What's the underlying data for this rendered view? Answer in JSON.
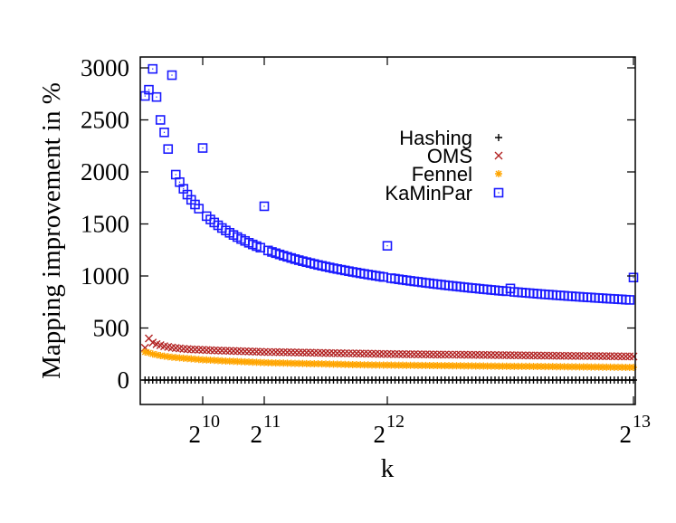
{
  "chart_data": {
    "type": "scatter",
    "title": "",
    "xlabel": "k",
    "ylabel": "Mapping improvement in %",
    "xlim": [
      0,
      8192
    ],
    "ylim": [
      -235,
      3100
    ],
    "x_scale": "linear",
    "grid": false,
    "legend_placement": "top-right (inside)",
    "y_ticks": [
      0,
      500,
      1000,
      1500,
      2000,
      2500,
      3000
    ],
    "x_ticks": [
      {
        "value": 1024,
        "base": "2",
        "exp": "10"
      },
      {
        "value": 2048,
        "base": "2",
        "exp": "11"
      },
      {
        "value": 4096,
        "base": "2",
        "exp": "12"
      },
      {
        "value": 8192,
        "base": "2",
        "exp": "13"
      }
    ],
    "x": [
      64,
      128,
      192,
      256,
      320,
      384,
      448,
      512,
      576,
      640,
      704,
      768,
      832,
      896,
      960,
      1024,
      1088,
      1152,
      1216,
      1280,
      1344,
      1408,
      1472,
      1536,
      1600,
      1664,
      1728,
      1792,
      1856,
      1920,
      1984,
      2048,
      2112,
      2176,
      2240,
      2304,
      2368,
      2432,
      2496,
      2560,
      2624,
      2688,
      2752,
      2816,
      2880,
      2944,
      3008,
      3072,
      3136,
      3200,
      3264,
      3328,
      3392,
      3456,
      3520,
      3584,
      3648,
      3712,
      3776,
      3840,
      3904,
      3968,
      4032,
      4096,
      4160,
      4224,
      4288,
      4352,
      4416,
      4480,
      4544,
      4608,
      4672,
      4736,
      4800,
      4864,
      4928,
      4992,
      5056,
      5120,
      5184,
      5248,
      5312,
      5376,
      5440,
      5504,
      5568,
      5632,
      5696,
      5760,
      5824,
      5888,
      5952,
      6016,
      6080,
      6144,
      6208,
      6272,
      6336,
      6400,
      6464,
      6528,
      6592,
      6656,
      6720,
      6784,
      6848,
      6912,
      6976,
      7040,
      7104,
      7168,
      7232,
      7296,
      7360,
      7424,
      7488,
      7552,
      7616,
      7680,
      7744,
      7808,
      7872,
      7936,
      8000,
      8064,
      8128,
      8192
    ],
    "series": [
      {
        "name": "Hashing",
        "marker": "plus",
        "color": "#000000",
        "values": [
          0,
          0,
          0,
          0,
          0,
          0,
          0,
          0,
          0,
          0,
          0,
          0,
          0,
          0,
          0,
          0,
          0,
          0,
          0,
          0,
          0,
          0,
          0,
          0,
          0,
          0,
          0,
          0,
          0,
          0,
          0,
          0,
          0,
          0,
          0,
          0,
          0,
          0,
          0,
          0,
          0,
          0,
          0,
          0,
          0,
          0,
          0,
          0,
          0,
          0,
          0,
          0,
          0,
          0,
          0,
          0,
          0,
          0,
          0,
          0,
          0,
          0,
          0,
          0,
          0,
          0,
          0,
          0,
          0,
          0,
          0,
          0,
          0,
          0,
          0,
          0,
          0,
          0,
          0,
          0,
          0,
          0,
          0,
          0,
          0,
          0,
          0,
          0,
          0,
          0,
          0,
          0,
          0,
          0,
          0,
          0,
          0,
          0,
          0,
          0,
          0,
          0,
          0,
          0,
          0,
          0,
          0,
          0,
          0,
          0,
          0,
          0,
          0,
          0,
          0,
          0,
          0,
          0,
          0,
          0,
          0,
          0,
          0,
          0,
          0,
          0,
          0,
          0
        ]
      },
      {
        "name": "OMS",
        "marker": "cross",
        "color": "#b22222",
        "values": [
          310,
          400,
          360,
          345,
          335,
          325,
          318,
          312,
          308,
          304,
          300,
          297,
          295,
          293,
          291,
          290,
          288,
          287,
          285,
          284,
          283,
          282,
          280,
          279,
          278,
          277,
          276,
          275,
          274,
          273,
          272,
          270,
          269,
          269,
          268,
          267,
          267,
          266,
          266,
          265,
          264,
          264,
          263,
          263,
          262,
          261,
          261,
          260,
          259,
          259,
          258,
          258,
          257,
          256,
          256,
          255,
          254,
          254,
          253,
          253,
          252,
          251,
          251,
          250,
          250,
          249,
          249,
          249,
          248,
          248,
          248,
          247,
          247,
          247,
          246,
          246,
          245,
          245,
          245,
          244,
          244,
          244,
          243,
          243,
          242,
          242,
          242,
          241,
          241,
          241,
          240,
          240,
          239,
          239,
          239,
          238,
          238,
          238,
          237,
          237,
          236,
          236,
          236,
          235,
          235,
          235,
          234,
          234,
          233,
          233,
          233,
          232,
          232,
          232,
          231,
          231,
          230,
          230,
          230,
          229,
          229,
          229,
          228,
          228,
          227,
          227,
          227,
          226
        ]
      },
      {
        "name": "Fennel",
        "marker": "star",
        "color": "#ffa500",
        "values": [
          270,
          262,
          250,
          242,
          235,
          229,
          224,
          220,
          216,
          213,
          210,
          207,
          204,
          201,
          198,
          195,
          193,
          191,
          189,
          187,
          185,
          183,
          181,
          180,
          178,
          177,
          175,
          174,
          172,
          171,
          169,
          167,
          166,
          165,
          164,
          164,
          163,
          162,
          161,
          160,
          160,
          159,
          158,
          157,
          156,
          156,
          155,
          154,
          153,
          152,
          152,
          151,
          150,
          149,
          148,
          148,
          147,
          146,
          146,
          145,
          145,
          144,
          144,
          143,
          143,
          142,
          142,
          142,
          141,
          141,
          141,
          140,
          140,
          140,
          139,
          139,
          139,
          138,
          138,
          138,
          137,
          137,
          137,
          136,
          136,
          136,
          135,
          135,
          135,
          134,
          134,
          134,
          133,
          133,
          133,
          132,
          132,
          132,
          131,
          131,
          131,
          130,
          130,
          130,
          129,
          129,
          129,
          128,
          128,
          128,
          127,
          127,
          127,
          126,
          126,
          126,
          125,
          125,
          125,
          124,
          124,
          124,
          123,
          123,
          123,
          122,
          122,
          122
        ]
      },
      {
        "name": "KaMinPar",
        "marker": "square",
        "color": "#1a1aff",
        "values": [
          2730,
          2790,
          2990,
          2720,
          2500,
          2380,
          2220,
          2930,
          1974,
          1902,
          1838,
          1782,
          1732,
          1687,
          1647,
          2230,
          1575,
          1543,
          1514,
          1487,
          1461,
          1437,
          1415,
          1394,
          1374,
          1355,
          1337,
          1319,
          1303,
          1287,
          1272,
          1670,
          1245,
          1231,
          1219,
          1207,
          1195,
          1184,
          1173,
          1162,
          1152,
          1142,
          1133,
          1124,
          1115,
          1106,
          1098,
          1090,
          1082,
          1074,
          1067,
          1060,
          1053,
          1046,
          1039,
          1033,
          1026,
          1020,
          1014,
          1008,
          1002,
          996,
          990,
          1290,
          979,
          974,
          968,
          963,
          958,
          953,
          948,
          944,
          939,
          934,
          930,
          925,
          921,
          917,
          912,
          908,
          904,
          900,
          896,
          892,
          888,
          884,
          881,
          877,
          873,
          870,
          866,
          863,
          859,
          856,
          853,
          880,
          847,
          844,
          841,
          838,
          835,
          832,
          829,
          826,
          823,
          821,
          818,
          815,
          813,
          810,
          807,
          805,
          802,
          800,
          797,
          795,
          793,
          790,
          788,
          786,
          783,
          781,
          779,
          777,
          775,
          772,
          770,
          985
        ]
      }
    ]
  }
}
